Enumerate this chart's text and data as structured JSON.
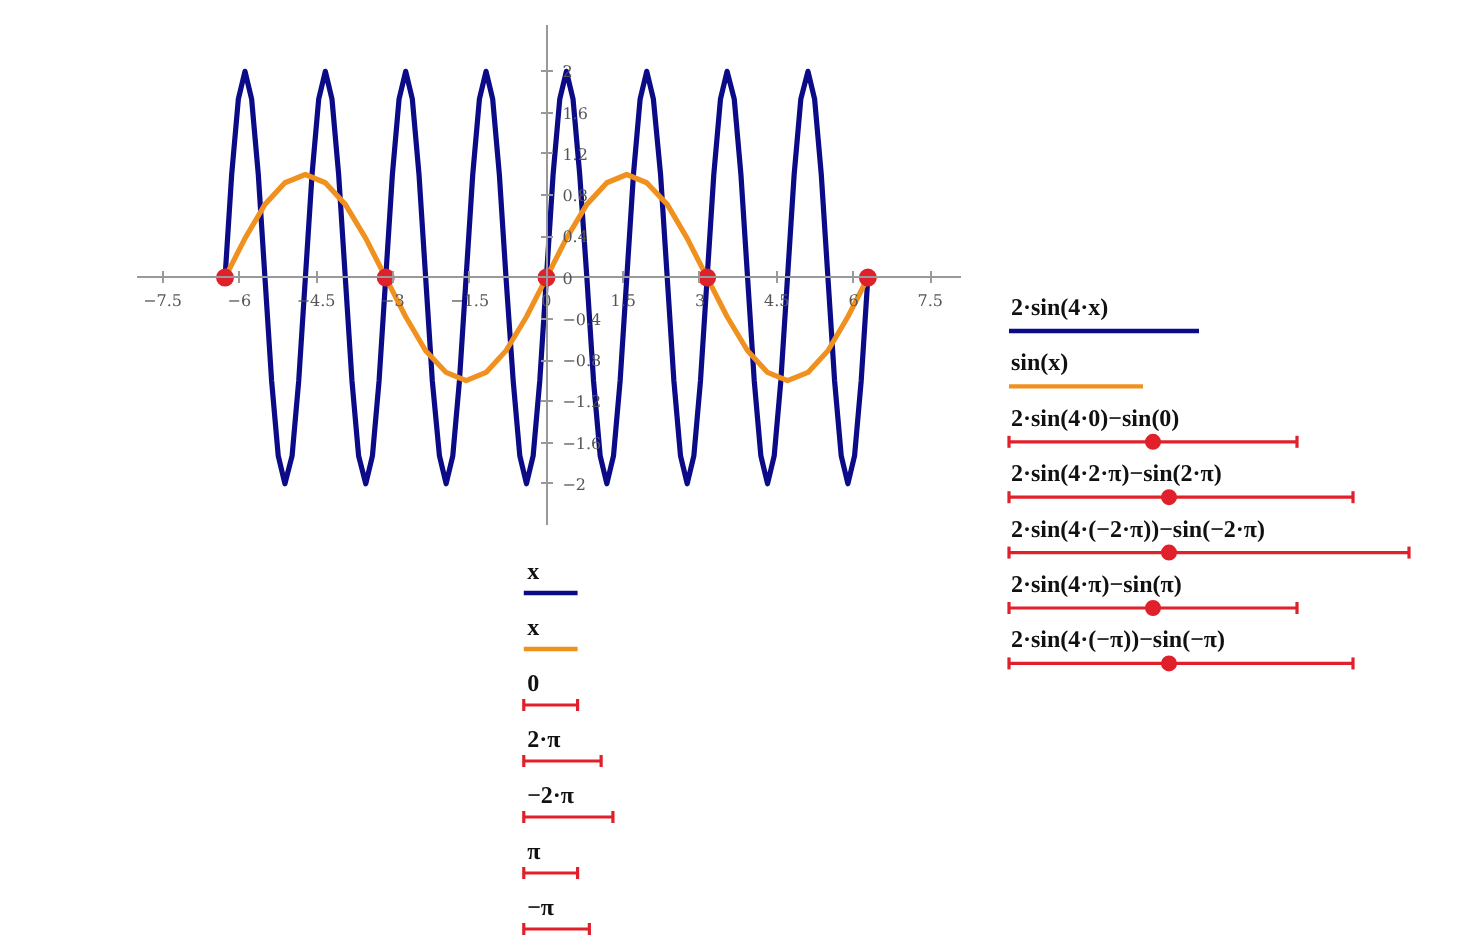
{
  "chart_data": {
    "type": "line",
    "xlim": [
      -8.0,
      8.1
    ],
    "ylim": [
      -2.4,
      2.45
    ],
    "xticks": [
      -7.5,
      -6,
      -4.5,
      -3,
      -1.5,
      0,
      1.5,
      3,
      4.5,
      6,
      7.5
    ],
    "yticks": [
      -2,
      -1.6,
      -1.2,
      -0.8,
      -0.4,
      0,
      0.4,
      0.8,
      1.2,
      1.6,
      2
    ],
    "grid": false,
    "legend": "right",
    "line_style": "solid",
    "annotations": [
      "x",
      "x",
      "0",
      "2·π",
      "−2·π",
      "π",
      "−π"
    ],
    "series": [
      {
        "name": "2·sin(4·x)",
        "color": "#0b0b88",
        "x": [
          -6.28,
          -6.15,
          -6.02,
          -5.89,
          -5.76,
          -5.63,
          -5.5,
          -5.37,
          -5.24,
          -5.11,
          -4.97,
          -4.84,
          -4.71,
          -4.58,
          -4.45,
          -4.32,
          -4.19,
          -4.06,
          -3.93,
          -3.8,
          -3.67,
          -3.53,
          -3.4,
          -3.27,
          -3.14,
          -3.01,
          -2.88,
          -2.75,
          -2.62,
          -2.49,
          -2.36,
          -2.23,
          -2.09,
          -1.96,
          -1.83,
          -1.7,
          -1.57,
          -1.44,
          -1.31,
          -1.18,
          -1.05,
          -0.92,
          -0.79,
          -0.65,
          -0.52,
          -0.39,
          -0.26,
          -0.13,
          0,
          0.13,
          0.26,
          0.39,
          0.52,
          0.65,
          0.79,
          0.92,
          1.05,
          1.18,
          1.31,
          1.44,
          1.57,
          1.7,
          1.83,
          1.96,
          2.09,
          2.23,
          2.36,
          2.49,
          2.62,
          2.75,
          2.88,
          3.01,
          3.14,
          3.27,
          3.4,
          3.53,
          3.67,
          3.8,
          3.93,
          4.06,
          4.19,
          4.32,
          4.45,
          4.58,
          4.71,
          4.84,
          4.97,
          5.11,
          5.24,
          5.37,
          5.5,
          5.63,
          5.76,
          5.89,
          6.02,
          6.15,
          6.28
        ],
        "values": [
          0,
          1,
          1.73,
          2,
          1.73,
          1,
          0,
          -1,
          -1.73,
          -2,
          -1.73,
          -1,
          0,
          1,
          1.73,
          2,
          1.73,
          1,
          0,
          -1,
          -1.73,
          -2,
          -1.73,
          -1,
          0,
          1,
          1.73,
          2,
          1.73,
          1,
          0,
          -1,
          -1.73,
          -2,
          -1.73,
          -1,
          0,
          1,
          1.73,
          2,
          1.73,
          1,
          0,
          -1,
          -1.73,
          -2,
          -1.73,
          -1,
          0,
          1,
          1.73,
          2,
          1.73,
          1,
          0,
          -1,
          -1.73,
          -2,
          -1.73,
          -1,
          0,
          1,
          1.73,
          2,
          1.73,
          1,
          0,
          -1,
          -1.73,
          -2,
          -1.73,
          -1,
          0,
          1,
          1.73,
          2,
          1.73,
          1,
          0,
          -1,
          -1.73,
          -2,
          -1.73,
          -1,
          0,
          1,
          1.73,
          2,
          1.73,
          1,
          0,
          -1,
          -1.73,
          -2,
          -1.73,
          -1,
          0
        ]
      },
      {
        "name": "sin(x)",
        "color": "#f0901e",
        "x": [
          -6.28,
          -5.89,
          -5.5,
          -5.11,
          -4.71,
          -4.32,
          -3.93,
          -3.53,
          -3.14,
          -2.75,
          -2.36,
          -1.96,
          -1.57,
          -1.18,
          -0.79,
          -0.39,
          0,
          0.39,
          0.79,
          1.18,
          1.57,
          1.96,
          2.36,
          2.75,
          3.14,
          3.53,
          3.93,
          4.32,
          4.71,
          5.11,
          5.5,
          5.89,
          6.28
        ],
        "values": [
          0,
          0.38,
          0.71,
          0.92,
          1,
          0.92,
          0.71,
          0.38,
          0,
          -0.38,
          -0.71,
          -0.92,
          -1,
          -0.92,
          -0.71,
          -0.38,
          0,
          0.38,
          0.71,
          0.92,
          1,
          0.92,
          0.71,
          0.38,
          0,
          -0.38,
          -0.71,
          -0.92,
          -1,
          -0.92,
          -0.71,
          -0.38,
          0
        ]
      },
      {
        "name": "2·sin(4·0)−sin(0)",
        "type": "scatter",
        "marker": "circle",
        "color": "#e0202a",
        "x": [
          0
        ],
        "values": [
          0
        ]
      },
      {
        "name": "2·sin(4·2·π)−sin(2·π)",
        "type": "scatter",
        "marker": "circle",
        "color": "#e0202a",
        "x": [
          6.28
        ],
        "values": [
          0
        ]
      },
      {
        "name": "2·sin(4·(−2·π))−sin(−2·π)",
        "type": "scatter",
        "marker": "circle",
        "color": "#e0202a",
        "x": [
          -6.28
        ],
        "values": [
          0
        ]
      },
      {
        "name": "2·sin(4·π)−sin(π)",
        "type": "scatter",
        "marker": "circle",
        "color": "#e0202a",
        "x": [
          3.14
        ],
        "values": [
          0
        ]
      },
      {
        "name": "2·sin(4·(−π))−sin(−π)",
        "type": "scatter",
        "marker": "circle",
        "color": "#e0202a",
        "x": [
          -3.14
        ],
        "values": [
          0
        ]
      }
    ]
  }
}
